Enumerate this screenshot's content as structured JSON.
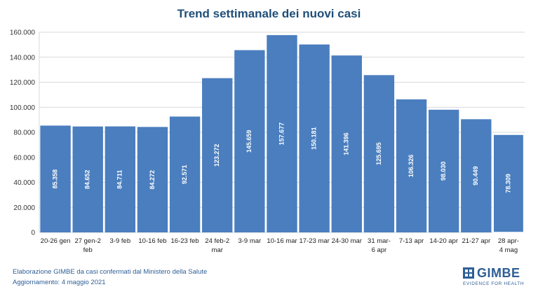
{
  "chart_data": {
    "type": "bar",
    "title": "Trend settimanale dei nuovi casi",
    "categories": [
      [
        "20-26 gen"
      ],
      [
        "27 gen-2",
        "feb"
      ],
      [
        "3-9 feb"
      ],
      [
        "10-16 feb"
      ],
      [
        "16-23 feb"
      ],
      [
        "24 feb-2",
        "mar"
      ],
      [
        "3-9 mar"
      ],
      [
        "10-16 mar"
      ],
      [
        "17-23 mar"
      ],
      [
        "24-30 mar"
      ],
      [
        "31 mar-",
        "6 apr"
      ],
      [
        "7-13 apr"
      ],
      [
        "14-20 apr"
      ],
      [
        "21-27 apr"
      ],
      [
        "28 apr-",
        "4 mag"
      ]
    ],
    "values": [
      85358,
      84652,
      84711,
      84272,
      92571,
      123272,
      145659,
      157677,
      150181,
      141396,
      125695,
      106326,
      98030,
      90449,
      78309
    ],
    "data_labels": [
      "85.358",
      "84.652",
      "84.711",
      "84.272",
      "92.571",
      "123.272",
      "145.659",
      "157.677",
      "150.181",
      "141.396",
      "125.695",
      "106.326",
      "98.030",
      "90.449",
      "78.309"
    ],
    "yticks": [
      0,
      20000,
      40000,
      60000,
      80000,
      100000,
      120000,
      140000,
      160000
    ],
    "ytick_labels": [
      "0",
      "20.000",
      "40.000",
      "60.000",
      "80.000",
      "100.000",
      "120.000",
      "140.000",
      "160.000"
    ],
    "ylim": [
      0,
      160000
    ],
    "xlabel": "",
    "ylabel": "",
    "grid": true,
    "legend": "none",
    "bar_color": "#4a7ebf",
    "last_bar_border": "#ffffff"
  },
  "footer": {
    "line1": "Elaborazione GIMBE da casi confermati dal Ministero della Salute",
    "line2": "Aggiornamento:  4 maggio 2021"
  },
  "logo": {
    "name": "GIMBE",
    "tagline": "EVIDENCE FOR HEALTH",
    "icon": "gimbe-logo-icon",
    "color": "#2e5e96"
  }
}
